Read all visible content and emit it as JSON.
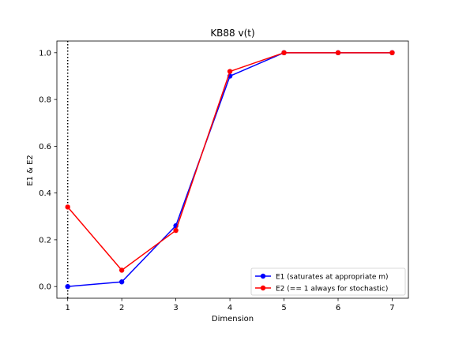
{
  "chart_data": {
    "type": "line",
    "title": "KB88 v(t)",
    "xlabel": "Dimension",
    "ylabel": "E1 & E2",
    "xlim": [
      0.8,
      7.3
    ],
    "ylim": [
      -0.05,
      1.05
    ],
    "xticks": [
      1,
      2,
      3,
      4,
      5,
      6,
      7
    ],
    "yticks": [
      0.0,
      0.2,
      0.4,
      0.6,
      0.8,
      1.0
    ],
    "ytick_labels": [
      "0.0",
      "0.2",
      "0.4",
      "0.6",
      "0.8",
      "1.0"
    ],
    "x": [
      1,
      2,
      3,
      4,
      5,
      6,
      7
    ],
    "series": [
      {
        "name": "E1 (saturates at appropriate m)",
        "color": "#0000ff",
        "values": [
          0.0,
          0.02,
          0.26,
          0.9,
          1.0,
          1.0,
          1.0
        ]
      },
      {
        "name": "E2 (== 1 always for stochastic)",
        "color": "#ff0000",
        "values": [
          0.34,
          0.07,
          0.24,
          0.92,
          1.0,
          1.0,
          1.0
        ]
      }
    ],
    "vline": {
      "x": 1,
      "style": "dotted",
      "color": "#000000"
    },
    "legend_location": "lower-right",
    "grid": false
  }
}
